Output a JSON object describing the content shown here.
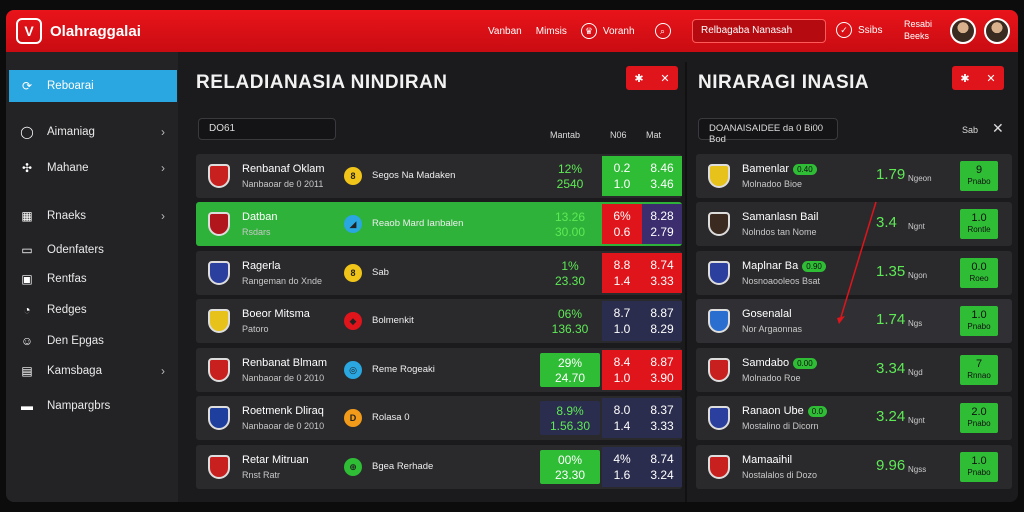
{
  "header": {
    "title": "Olahraggalai",
    "links": [
      "Vanban",
      "Mimsis",
      "Voranh"
    ],
    "search_text": "Relbagaba Nanasah",
    "r_label": "Ssibs",
    "user_line1": "Resabi",
    "user_line2": "Beeks"
  },
  "sidebar": {
    "items": [
      {
        "label": "Reboarai",
        "icon": "refresh-icon",
        "glyph": "⟳",
        "chev": false,
        "active": true
      },
      {
        "label": "Aimaniag",
        "icon": "ring-icon",
        "glyph": "◯",
        "chev": true,
        "active": false
      },
      {
        "label": "Mahane",
        "icon": "cross-arrows-icon",
        "glyph": "✣",
        "chev": true,
        "active": false
      },
      {
        "label": "Rnaeks",
        "icon": "grid-icon",
        "glyph": "▦",
        "chev": true,
        "active": false
      },
      {
        "label": "Odenfaters",
        "icon": "folder-icon",
        "glyph": "▭",
        "chev": false,
        "active": false
      },
      {
        "label": "Rentfas",
        "icon": "display-icon",
        "glyph": "▣",
        "chev": false,
        "active": false
      },
      {
        "label": "Redges",
        "icon": "bubble-icon",
        "glyph": "◔",
        "chev": false,
        "active": false
      },
      {
        "label": "Den Epgas",
        "icon": "badge-icon",
        "glyph": "☺",
        "chev": false,
        "active": false
      },
      {
        "label": "Kamsbaga",
        "icon": "table-icon",
        "glyph": "▤",
        "chev": true,
        "active": false
      },
      {
        "label": "Nampargbrs",
        "icon": "cards-icon",
        "glyph": "▬",
        "chev": false,
        "active": false
      }
    ]
  },
  "left": {
    "title": "RELADIANASIA NINDIRAN",
    "filter": "DO61",
    "col1": "Mantab",
    "col2": "N06",
    "col3": "Mat",
    "rows": [
      {
        "name": "Renbanaf Oklam",
        "sub": "Nanbaoar de 0 2011",
        "mico": "8",
        "micobg": "#f0c419",
        "match": "Segos Na Madaken",
        "a1": "12%",
        "a2": "2540",
        "aStyle": "",
        "b1": "0.2",
        "b2": "1.0",
        "c1": "8.46",
        "c2": "3.46",
        "bStyle": "bg-green",
        "cStyle": "bg-green",
        "crest": "#c8201e",
        "hl": false
      },
      {
        "name": "Datban",
        "sub": "Rsdars",
        "mico": "◢",
        "micobg": "#2aa6e0",
        "match": "Reaob Mard Ianbalen",
        "a1": "13.26",
        "a2": "30.00",
        "aStyle": "",
        "b1": "6%",
        "b2": "0.6",
        "c1": "8.28",
        "c2": "2.79",
        "bStyle": "bg-red",
        "cStyle": "bg-purple",
        "crest": "#b0161c",
        "hl": true
      },
      {
        "name": "Ragerla",
        "sub": "Rangeman do Xnde",
        "mico": "8",
        "micobg": "#f0c419",
        "match": "Sab",
        "a1": "1%",
        "a2": "23.30",
        "aStyle": "",
        "b1": "8.8",
        "b2": "1.4",
        "c1": "8.74",
        "c2": "3.33",
        "bStyle": "bg-red",
        "cStyle": "bg-red",
        "crest": "#2a3f9e",
        "hl": false
      },
      {
        "name": "Boeor Mitsma",
        "sub": "Patoro",
        "mico": "◆",
        "micobg": "#e0141b",
        "match": "Bolmenkit",
        "a1": "06%",
        "a2": "136.30",
        "aStyle": "",
        "b1": "8.7",
        "b2": "1.0",
        "c1": "8.87",
        "c2": "8.29",
        "bStyle": "bg-navy",
        "cStyle": "bg-navy",
        "crest": "#e6c21a",
        "hl": false
      },
      {
        "name": "Renbanat Blmam",
        "sub": "Nanbaoar de 0 2010",
        "mico": "◎",
        "micobg": "#2aa6e0",
        "match": "Reme Rogeaki",
        "a1": "29%",
        "a2": "24.70",
        "aStyle": "bg-green",
        "b1": "8.4",
        "b2": "1.0",
        "c1": "8.87",
        "c2": "3.90",
        "bStyle": "bg-red",
        "cStyle": "bg-red",
        "crest": "#c8201e",
        "hl": false
      },
      {
        "name": "Roetmenk Dliraq",
        "sub": "Nanbaoar de 0 2010",
        "mico": "D",
        "micobg": "#f29a1a",
        "match": "Rolasa 0",
        "a1": "8.9%",
        "a2": "1.56.30",
        "aStyle": "bg-navy",
        "b1": "8.0",
        "b2": "1.4",
        "c1": "8.37",
        "c2": "3.33",
        "bStyle": "bg-navy",
        "cStyle": "bg-navy",
        "crest": "#1f3f9e",
        "hl": false
      },
      {
        "name": "Retar Mitruan",
        "sub": "Rnst Ratr",
        "mico": "⊕",
        "micobg": "#2fbd36",
        "match": "Bgea Rerhade",
        "a1": "00%",
        "a2": "23.30",
        "aStyle": "bg-green",
        "b1": "4%",
        "b2": "1.6",
        "c1": "8.74",
        "c2": "3.24",
        "bStyle": "bg-navy",
        "cStyle": "bg-navy",
        "crest": "#c8201e",
        "hl": false
      }
    ]
  },
  "right": {
    "title": "NIRARAGI INASIA",
    "filter": "DOANAISAIDEE da 0 Bi00 Bod",
    "col": "Sab",
    "rows": [
      {
        "name": "Bamenlar",
        "chip": "0.40",
        "sub": "Molnadoo Bioe",
        "val": "1.79",
        "sm": "Ngeon",
        "b1": "9",
        "b2": "Pnabo",
        "crest": "#e6c21a"
      },
      {
        "name": "Samanlasn Bail",
        "chip": "",
        "sub": "Nolndos tan Nome",
        "val": "3.4",
        "sm": "Ngnt",
        "b1": "1.0",
        "b2": "Rontle",
        "crest": "#3b2a20"
      },
      {
        "name": "Maplnar Ba",
        "chip": "0.90",
        "sub": "Nosnoaooleos Bsat",
        "val": "1.35",
        "sm": "Ngon",
        "b1": "0.0",
        "b2": "Roeo",
        "crest": "#2a3f9e"
      },
      {
        "name": "Gosenalal",
        "chip": "",
        "sub": "Nor Argaonnas",
        "val": "1.74",
        "sm": "Ngs",
        "b1": "1.0",
        "b2": "Pnabo",
        "crest": "#2a6fd0"
      },
      {
        "name": "Samdabo",
        "chip": "0.00",
        "sub": "Molnadoo Roe",
        "val": "3.34",
        "sm": "Ngd",
        "b1": "7",
        "b2": "Rnnao",
        "crest": "#c8201e"
      },
      {
        "name": "Ranaon Ube",
        "chip": "0.0",
        "sub": "Mostalino di Dicorn",
        "val": "3.24",
        "sm": "Ngnt",
        "b1": "2.0",
        "b2": "Pnabo",
        "crest": "#2a3f9e"
      },
      {
        "name": "Mamaaihil",
        "chip": "",
        "sub": "Nostalalos di Dozo",
        "val": "9.96",
        "sm": "Ngss",
        "b1": "1.0",
        "b2": "Pnabo",
        "crest": "#c8201e"
      }
    ]
  }
}
